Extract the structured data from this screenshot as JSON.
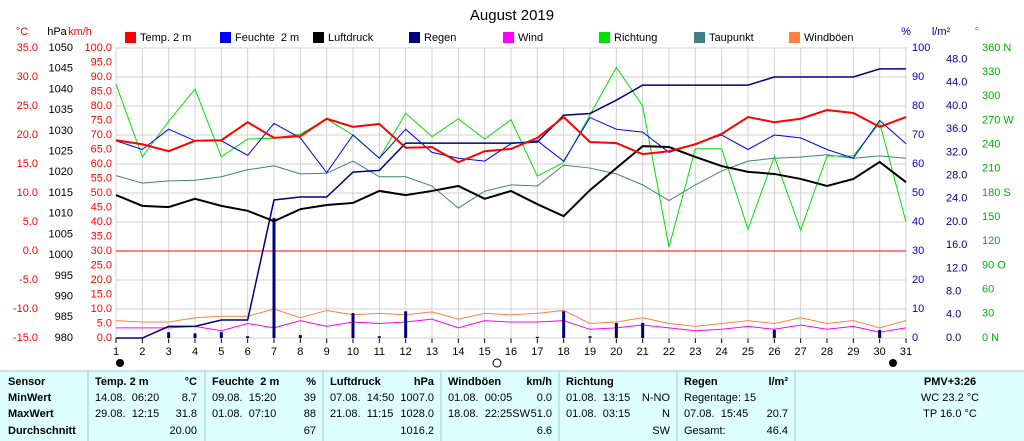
{
  "chart_data": {
    "type": "line",
    "title": "August 2019",
    "x": [
      1,
      2,
      3,
      4,
      5,
      6,
      7,
      8,
      9,
      10,
      11,
      12,
      13,
      14,
      15,
      16,
      17,
      18,
      19,
      20,
      21,
      22,
      23,
      24,
      25,
      26,
      27,
      28,
      29,
      30,
      31
    ],
    "xlim": [
      1,
      31
    ],
    "xticks": [
      1,
      2,
      3,
      4,
      5,
      6,
      7,
      8,
      9,
      10,
      11,
      12,
      13,
      14,
      15,
      16,
      17,
      18,
      19,
      20,
      21,
      22,
      23,
      24,
      25,
      26,
      27,
      28,
      29,
      30,
      31
    ],
    "grid": true,
    "y_label": "°C",
    "ylim": [
      -15,
      35
    ],
    "yticks": [
      {
        "value": 35,
        "label": "35.0"
      },
      {
        "value": 30,
        "label": "30.0"
      },
      {
        "value": 25,
        "label": "25.0"
      },
      {
        "value": 20,
        "label": "20.0"
      },
      {
        "value": 15,
        "label": "15.0"
      },
      {
        "value": 10,
        "label": "10.0"
      },
      {
        "value": 5,
        "label": "5.0"
      },
      {
        "value": 0,
        "label": "0.0"
      },
      {
        "value": -5,
        "label": "-5.0"
      },
      {
        "value": -10,
        "label": "-10.0"
      },
      {
        "value": -15,
        "label": "-15.0"
      }
    ],
    "y2_label": "hPa",
    "y2lim": [
      980,
      1050
    ],
    "y2ticks": [
      1050,
      1045,
      1040,
      1035,
      1030,
      1025,
      1020,
      1015,
      1010,
      1005,
      1000,
      995,
      990,
      985,
      980
    ],
    "y3_label": "km/h",
    "y3lim": [
      0,
      100
    ],
    "y3ticks": [
      {
        "value": 100,
        "label": "100.0"
      },
      {
        "value": 95,
        "label": "95.0"
      },
      {
        "value": 90,
        "label": "90.0"
      },
      {
        "value": 85,
        "label": "85.0"
      },
      {
        "value": 80,
        "label": "80.0"
      },
      {
        "value": 75,
        "label": "75.0"
      },
      {
        "value": 70,
        "label": "70.0"
      },
      {
        "value": 65,
        "label": "65.0"
      },
      {
        "value": 60,
        "label": "60.0"
      },
      {
        "value": 55,
        "label": "55.0"
      },
      {
        "value": 50,
        "label": "50.0"
      },
      {
        "value": 45,
        "label": "45.0"
      },
      {
        "value": 40,
        "label": "40.0"
      },
      {
        "value": 35,
        "label": "35.0"
      },
      {
        "value": 30,
        "label": "30.0"
      },
      {
        "value": 25,
        "label": "25.0"
      },
      {
        "value": 20,
        "label": "20.0"
      },
      {
        "value": 15,
        "label": "15.0"
      },
      {
        "value": 10,
        "label": "10.0"
      },
      {
        "value": 5,
        "label": "5.0"
      },
      {
        "value": 0,
        "label": "0.0"
      }
    ],
    "y4_label": "%",
    "y4lim": [
      0,
      100
    ],
    "y4ticks": [
      100,
      90,
      80,
      70,
      60,
      50,
      40,
      30,
      20,
      10,
      0
    ],
    "y5_label": "l/m²",
    "y5lim": [
      0,
      50
    ],
    "y5ticks": [
      {
        "value": 48,
        "label": "48.0"
      },
      {
        "value": 44,
        "label": "44.0"
      },
      {
        "value": 40,
        "label": "40.0"
      },
      {
        "value": 36,
        "label": "36.0"
      },
      {
        "value": 32,
        "label": "32.0"
      },
      {
        "value": 28,
        "label": "28.0"
      },
      {
        "value": 24,
        "label": "24.0"
      },
      {
        "value": 20,
        "label": "20.0"
      },
      {
        "value": 16,
        "label": "16.0"
      },
      {
        "value": 12,
        "label": "12.0"
      },
      {
        "value": 8,
        "label": "8.0"
      },
      {
        "value": 4,
        "label": "4.0"
      },
      {
        "value": 0,
        "label": "0.0"
      }
    ],
    "y6_label": "°",
    "y6lim": [
      0,
      360
    ],
    "y6ticks": [
      {
        "value": 360,
        "label": "360 N"
      },
      330,
      300,
      {
        "value": 270,
        "label": "270 W"
      },
      240,
      210,
      {
        "value": 180,
        "label": "180 S"
      },
      150,
      120,
      {
        "value": 90,
        "label": "90 O"
      },
      60,
      30,
      {
        "value": 0,
        "label": "0 N"
      }
    ],
    "series": [
      {
        "name": "Temp. 2 m",
        "color": "#ff0000",
        "axis": "y",
        "values": [
          19.1,
          18.4,
          17.2,
          19.0,
          19.1,
          22.2,
          19.5,
          19.8,
          22.8,
          21.4,
          21.9,
          17.8,
          17.9,
          15.3,
          17.2,
          17.6,
          19.5,
          23.1,
          18.8,
          18.6,
          16.7,
          17.2,
          18.4,
          20.2,
          23.1,
          22.2,
          22.8,
          24.3,
          23.8,
          21.4,
          23.1
        ]
      },
      {
        "name": "Feuchte  2 m",
        "color": "#0000ff",
        "axis": "y4",
        "values": [
          68,
          65,
          72,
          68,
          68,
          63,
          74,
          69,
          57,
          70,
          62,
          72,
          64,
          62,
          61,
          67,
          68,
          61,
          76,
          72,
          71,
          64,
          67,
          70,
          65,
          70,
          69,
          65,
          62,
          75,
          67
        ]
      },
      {
        "name": "Luftdruck",
        "color": "#000000",
        "axis": "y2",
        "values": [
          1014.5,
          1011.9,
          1011.6,
          1013.6,
          1011.9,
          1010.7,
          1008.2,
          1011.1,
          1012.1,
          1012.6,
          1015.5,
          1014.5,
          1015.5,
          1016.7,
          1013.6,
          1015.5,
          1012.3,
          1009.4,
          1015.7,
          1021.0,
          1026.3,
          1026.1,
          1023.7,
          1021.5,
          1020.1,
          1019.6,
          1018.4,
          1016.7,
          1018.4,
          1022.5,
          1017.6
        ]
      },
      {
        "name": "Regen",
        "color": "#000080",
        "axis": "y5",
        "values": [
          0,
          0,
          1.0,
          0.8,
          1.0,
          0.3,
          20.7,
          0.5,
          0,
          4.3,
          0.3,
          4.6,
          0,
          0,
          0,
          0,
          0.2,
          4.6,
          0.3,
          2.6,
          2.6,
          0,
          0,
          0,
          0,
          1.4,
          0,
          0,
          0,
          1.4,
          0
        ],
        "line_values": [
          0,
          0,
          2.0,
          2.0,
          3.1,
          3.1,
          23.8,
          24.3,
          24.3,
          28.6,
          28.9,
          33.6,
          33.6,
          33.6,
          33.6,
          33.6,
          33.8,
          38.4,
          38.7,
          41.0,
          43.6,
          43.6,
          43.6,
          43.6,
          43.6,
          45.0,
          45.0,
          45.0,
          45.0,
          46.4,
          46.4
        ]
      },
      {
        "name": "Wind",
        "color": "#ff00ff",
        "axis": "y3",
        "values": [
          3.5,
          3.5,
          3.5,
          4.0,
          2.5,
          5.0,
          3.5,
          6.0,
          4.0,
          5.5,
          5.0,
          5.5,
          6.5,
          3.5,
          6.0,
          5.5,
          5.5,
          6.0,
          3.0,
          3.5,
          4.5,
          3.5,
          2.5,
          3.0,
          4.0,
          3.0,
          4.5,
          3.0,
          4.0,
          2.0,
          3.5
        ]
      },
      {
        "name": "Richtung",
        "color": "#00e000",
        "axis": "y6",
        "values": [
          315,
          225,
          269,
          309,
          225,
          247,
          248,
          253,
          272,
          252,
          223,
          279,
          250,
          272,
          247,
          271,
          201,
          218,
          277,
          336,
          288,
          113,
          235,
          235,
          135,
          225,
          134,
          226,
          226,
          267,
          144
        ]
      },
      {
        "name": "Taupunkt",
        "color": "#408080",
        "axis": "y",
        "values": [
          13.0,
          11.7,
          12.1,
          12.2,
          12.8,
          14.0,
          14.7,
          13.3,
          13.4,
          15.5,
          12.8,
          12.8,
          11.2,
          7.4,
          10.3,
          11.4,
          11.2,
          14.8,
          14.3,
          13.3,
          11.4,
          8.7,
          11.4,
          13.8,
          15.5,
          16.0,
          16.2,
          16.6,
          16.0,
          16.4,
          16.0
        ]
      },
      {
        "name": "Windböen",
        "color": "#ff8040",
        "axis": "y3",
        "values": [
          6.0,
          5.5,
          5.5,
          7.0,
          7.5,
          7.5,
          10.0,
          7.0,
          9.5,
          8.0,
          8.5,
          8.0,
          9.0,
          6.5,
          8.5,
          8.0,
          8.5,
          9.5,
          5.0,
          5.5,
          7.0,
          5.0,
          4.0,
          5.0,
          6.0,
          5.0,
          7.0,
          5.0,
          6.0,
          3.5,
          6.0
        ]
      }
    ]
  },
  "table": {
    "rows": [
      [
        "Sensor",
        "Temp. 2 m",
        "°C",
        "Feuchte  2 m",
        "%",
        "Luftdruck",
        "hPa",
        "Windböen",
        "km/h",
        "Richtung",
        "Regen",
        "l/m²",
        "PMV+3:26"
      ],
      [
        "MinWert",
        "14.08.  06:20",
        "8.7",
        "09.08.  15:20",
        "39",
        "07.08.  14:50",
        "1007.0",
        "01.08.  00:05",
        "0.0",
        "01.08.  13:15",
        "N-NO",
        "Regentage: 15",
        "WC 23.2 °C"
      ],
      [
        "MaxWert",
        "29.08.  12:15",
        "31.8",
        "01.08.  07:10",
        "88",
        "21.08.  11:15",
        "1028.0",
        "18.08.  22:25",
        "SW",
        "51.0",
        "01.08.  03:15",
        "N",
        "07.08.  15:45",
        "20.7",
        "TP 16.0 °C"
      ],
      [
        "Durchschnitt",
        "20.00",
        "67",
        "1016.2",
        "6.6",
        "SW",
        "Gesamt:",
        "46.4"
      ]
    ]
  }
}
